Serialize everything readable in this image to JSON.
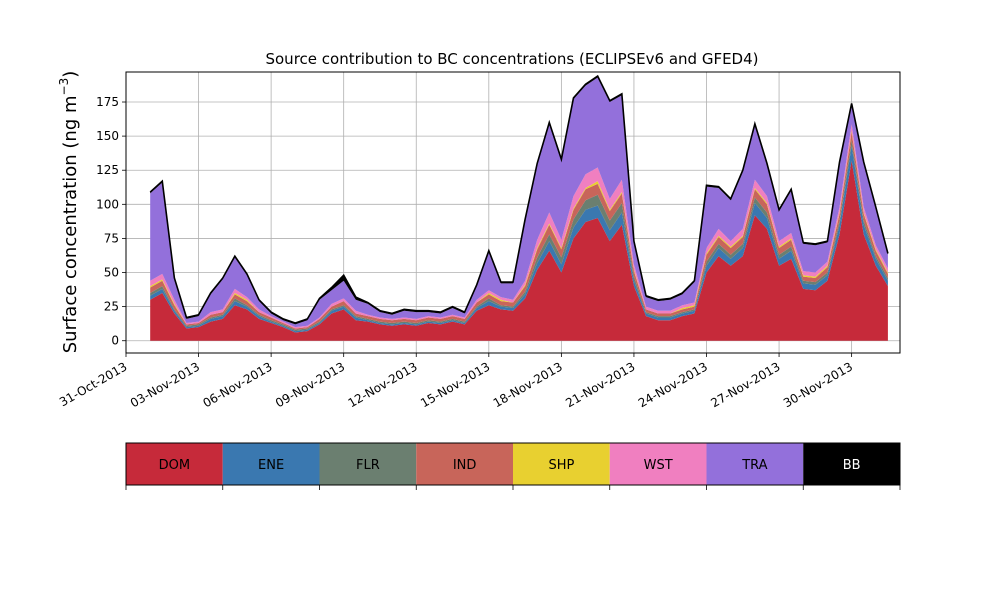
{
  "chart_data": {
    "type": "area",
    "stacked": true,
    "title": "Source contribution to BC concentrations (ECLIPSEv6 and GFED4)",
    "xlabel": "",
    "ylabel": "Surface concentration (ng m",
    "ylabel_unit_superscript": "−3",
    "ylabel_close": ")",
    "grid": true,
    "ylim": [
      -9,
      197
    ],
    "xlim": [
      "2013-10-31",
      "2013-12-02"
    ],
    "yticks": [
      0,
      25,
      50,
      75,
      100,
      125,
      150,
      175
    ],
    "xticks": [
      "31-Oct-2013",
      "03-Nov-2013",
      "06-Nov-2013",
      "09-Nov-2013",
      "12-Nov-2013",
      "15-Nov-2013",
      "18-Nov-2013",
      "21-Nov-2013",
      "24-Nov-2013",
      "27-Nov-2013",
      "30-Nov-2013"
    ],
    "x": [
      "2013-11-01",
      "2013-11-01 12:00",
      "2013-11-02",
      "2013-11-02 12:00",
      "2013-11-03",
      "2013-11-03 12:00",
      "2013-11-04",
      "2013-11-04 12:00",
      "2013-11-05",
      "2013-11-05 12:00",
      "2013-11-06",
      "2013-11-06 12:00",
      "2013-11-07",
      "2013-11-07 12:00",
      "2013-11-08",
      "2013-11-08 12:00",
      "2013-11-09",
      "2013-11-09 12:00",
      "2013-11-10",
      "2013-11-10 12:00",
      "2013-11-11",
      "2013-11-11 12:00",
      "2013-11-12",
      "2013-11-12 12:00",
      "2013-11-13",
      "2013-11-13 12:00",
      "2013-11-14",
      "2013-11-14 12:00",
      "2013-11-15",
      "2013-11-15 12:00",
      "2013-11-16",
      "2013-11-16 12:00",
      "2013-11-17",
      "2013-11-17 12:00",
      "2013-11-18",
      "2013-11-18 12:00",
      "2013-11-19",
      "2013-11-19 12:00",
      "2013-11-20",
      "2013-11-20 12:00",
      "2013-11-21",
      "2013-11-21 12:00",
      "2013-11-22",
      "2013-11-22 12:00",
      "2013-11-23",
      "2013-11-23 12:00",
      "2013-11-24",
      "2013-11-24 12:00",
      "2013-11-25",
      "2013-11-25 12:00",
      "2013-11-26",
      "2013-11-26 12:00",
      "2013-11-27",
      "2013-11-27 12:00",
      "2013-11-28",
      "2013-11-28 12:00",
      "2013-11-29",
      "2013-11-29 12:00",
      "2013-11-30",
      "2013-11-30 12:00",
      "2013-12-01",
      "2013-12-01 12:00"
    ],
    "series": [
      {
        "name": "DOM",
        "color": "#c62a3a",
        "values": [
          30,
          35,
          20,
          9,
          10,
          14,
          16,
          26,
          23,
          16,
          13,
          10,
          6,
          7,
          12,
          20,
          23,
          15,
          14,
          12,
          11,
          12,
          11,
          13,
          12,
          14,
          12,
          22,
          26,
          23,
          22,
          31,
          52,
          66,
          50,
          75,
          87,
          90,
          73,
          85,
          40,
          18,
          15,
          15,
          18,
          20,
          50,
          62,
          55,
          62,
          92,
          82,
          55,
          60,
          38,
          37,
          44,
          78,
          132,
          78,
          55,
          40
        ]
      },
      {
        "name": "ENE",
        "color": "#3a78b0",
        "values": [
          3,
          3,
          2,
          1,
          1,
          2,
          2,
          3,
          2,
          2,
          1,
          1,
          1,
          1,
          1,
          2,
          2,
          2,
          1,
          1,
          1,
          1,
          1,
          1,
          1,
          1,
          1,
          2,
          3,
          2,
          2,
          3,
          5,
          7,
          6,
          8,
          9,
          9,
          8,
          9,
          4,
          2,
          2,
          2,
          2,
          2,
          5,
          6,
          5,
          6,
          9,
          8,
          5,
          6,
          4,
          4,
          4,
          7,
          11,
          7,
          5,
          4
        ]
      },
      {
        "name": "FLR",
        "color": "#6b7f70",
        "values": [
          2,
          2,
          1,
          1,
          1,
          1,
          1,
          2,
          1,
          1,
          1,
          1,
          1,
          1,
          1,
          1,
          1,
          1,
          1,
          1,
          1,
          1,
          1,
          1,
          1,
          1,
          1,
          1,
          2,
          1,
          1,
          2,
          4,
          5,
          5,
          6,
          7,
          8,
          7,
          7,
          3,
          1,
          1,
          1,
          1,
          1,
          3,
          3,
          3,
          3,
          4,
          4,
          3,
          3,
          2,
          2,
          2,
          3,
          4,
          3,
          2,
          2
        ]
      },
      {
        "name": "IND",
        "color": "#c8655a",
        "values": [
          4,
          4,
          3,
          1,
          1,
          2,
          2,
          3,
          3,
          2,
          2,
          1,
          1,
          1,
          2,
          2,
          3,
          2,
          2,
          2,
          2,
          2,
          2,
          2,
          2,
          2,
          2,
          3,
          3,
          3,
          3,
          4,
          6,
          7,
          6,
          7,
          8,
          8,
          7,
          7,
          4,
          2,
          2,
          2,
          2,
          2,
          5,
          5,
          5,
          5,
          6,
          6,
          5,
          5,
          3,
          3,
          4,
          5,
          6,
          5,
          4,
          3
        ]
      },
      {
        "name": "SHP",
        "color": "#e8d030",
        "values": [
          1,
          1,
          1,
          0,
          0,
          0,
          0,
          1,
          1,
          0,
          0,
          0,
          0,
          0,
          0,
          0,
          0,
          0,
          0,
          0,
          0,
          0,
          0,
          0,
          0,
          0,
          0,
          0,
          1,
          1,
          0,
          1,
          1,
          1,
          1,
          1,
          1,
          2,
          1,
          1,
          1,
          0,
          0,
          0,
          1,
          1,
          1,
          1,
          1,
          1,
          1,
          1,
          1,
          1,
          1,
          1,
          1,
          1,
          1,
          1,
          1,
          1
        ]
      },
      {
        "name": "WST",
        "color": "#f07fc0",
        "values": [
          4,
          4,
          3,
          1,
          1,
          2,
          2,
          3,
          2,
          2,
          1,
          1,
          1,
          1,
          1,
          2,
          2,
          2,
          1,
          1,
          1,
          1,
          1,
          1,
          1,
          1,
          1,
          2,
          2,
          2,
          2,
          3,
          6,
          8,
          6,
          9,
          10,
          10,
          8,
          9,
          4,
          2,
          2,
          2,
          2,
          2,
          4,
          5,
          4,
          5,
          6,
          5,
          4,
          4,
          3,
          3,
          3,
          4,
          5,
          4,
          3,
          3
        ]
      },
      {
        "name": "TRA",
        "color": "#9370db",
        "values": [
          64,
          67,
          15,
          3,
          4,
          13,
          22,
          23,
          16,
          6,
          2,
          1,
          2,
          4,
          13,
          10,
          13,
          8,
          8,
          4,
          3,
          5,
          5,
          3,
          3,
          5,
          3,
          10,
          28,
          10,
          12,
          44,
          55,
          65,
          58,
          71,
          65,
          66,
          71,
          62,
          16,
          7,
          7,
          8,
          8,
          15,
          45,
          30,
          30,
          42,
          40,
          23,
          22,
          31,
          20,
          20,
          14,
          32,
          14,
          32,
          27,
          10
        ]
      },
      {
        "name": "BB",
        "color": "#000000",
        "values": [
          1,
          1,
          1,
          1,
          1,
          1,
          1,
          1,
          1,
          1,
          1,
          1,
          1,
          1,
          1,
          2,
          4,
          2,
          1,
          1,
          1,
          1,
          1,
          1,
          1,
          1,
          1,
          1,
          1,
          1,
          1,
          1,
          1,
          1,
          1,
          1,
          1,
          1,
          1,
          1,
          1,
          1,
          1,
          1,
          1,
          1,
          1,
          1,
          1,
          1,
          1,
          1,
          1,
          1,
          1,
          1,
          1,
          1,
          1,
          1,
          1,
          1
        ]
      }
    ]
  }
}
